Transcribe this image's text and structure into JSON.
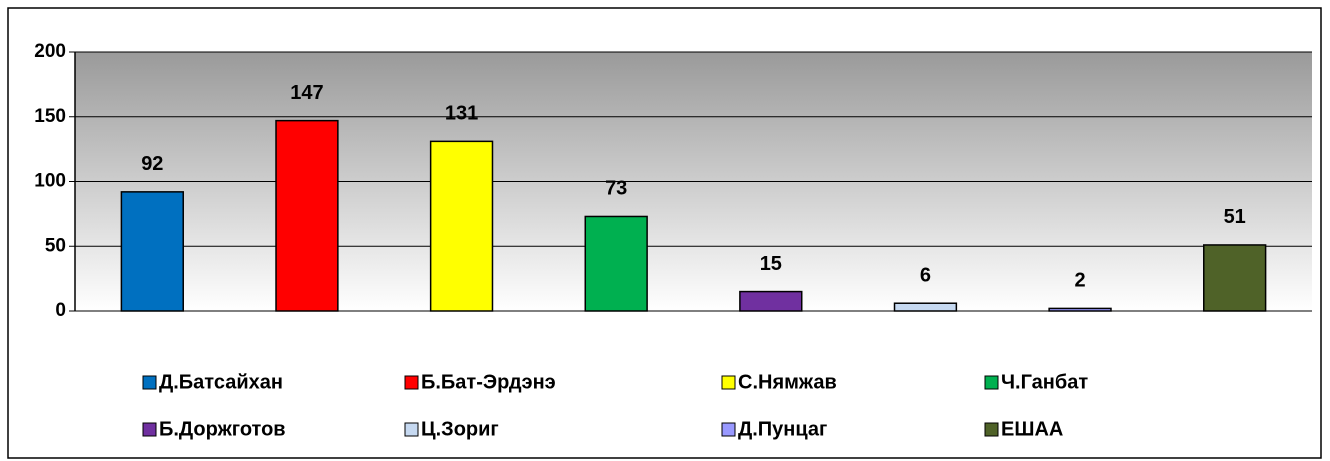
{
  "chart_data": {
    "type": "bar",
    "categories": [
      "Д.Батсайхан",
      "Б.Бат-Эрдэнэ",
      "С.Нямжав",
      "Ч.Ганбат",
      "Б.Доржготов",
      "Ц.Зориг",
      "Д.Пунцаг",
      "ЕШАА"
    ],
    "values": [
      92,
      147,
      131,
      73,
      15,
      6,
      2,
      51
    ],
    "colors": [
      "#0070c0",
      "#ff0000",
      "#ffff00",
      "#00b050",
      "#7030a0",
      "#c6d9f1",
      "#9999ff",
      "#4f6228"
    ],
    "ylim": [
      0,
      200
    ],
    "yticks": [
      0,
      50,
      100,
      150,
      200
    ],
    "grid": true,
    "legend": "bottom"
  }
}
